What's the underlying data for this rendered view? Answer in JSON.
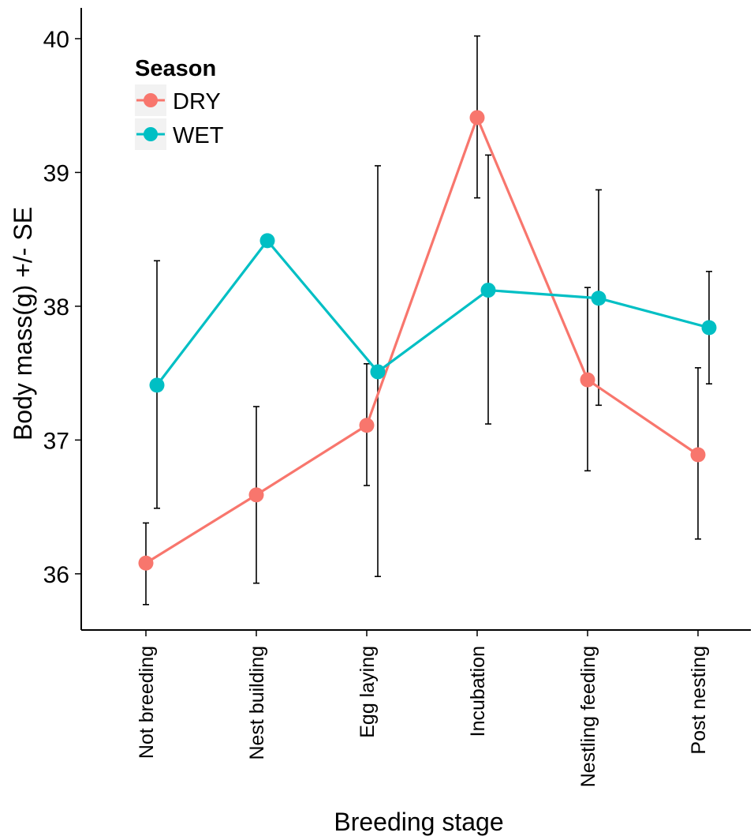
{
  "chart_data": {
    "type": "line",
    "xlabel": "Breeding stage",
    "ylabel": "Body mass(g) +/- SE",
    "categories": [
      "Not breeding",
      "Nest building",
      "Egg laying",
      "Incubation",
      "Nestling feeding",
      "Post nesting"
    ],
    "ylim": [
      35.58,
      40.23
    ],
    "yticks": [
      36,
      37,
      38,
      39,
      40
    ],
    "legend": {
      "title": "Season",
      "position": "top-left"
    },
    "grid": false,
    "series": [
      {
        "name": "DRY",
        "color": "#F8766D",
        "values": [
          36.08,
          36.59,
          37.11,
          39.41,
          37.45,
          36.89
        ],
        "error_low": [
          35.77,
          35.93,
          36.66,
          38.81,
          36.77,
          36.26
        ],
        "error_high": [
          36.38,
          37.25,
          37.57,
          40.02,
          38.14,
          37.54
        ]
      },
      {
        "name": "WET",
        "color": "#00BFC4",
        "values": [
          37.41,
          38.49,
          37.51,
          38.12,
          38.06,
          37.84
        ],
        "error_low": [
          36.49,
          null,
          35.98,
          37.12,
          37.26,
          37.42
        ],
        "error_high": [
          38.34,
          null,
          39.05,
          39.13,
          38.87,
          38.26
        ]
      }
    ]
  }
}
